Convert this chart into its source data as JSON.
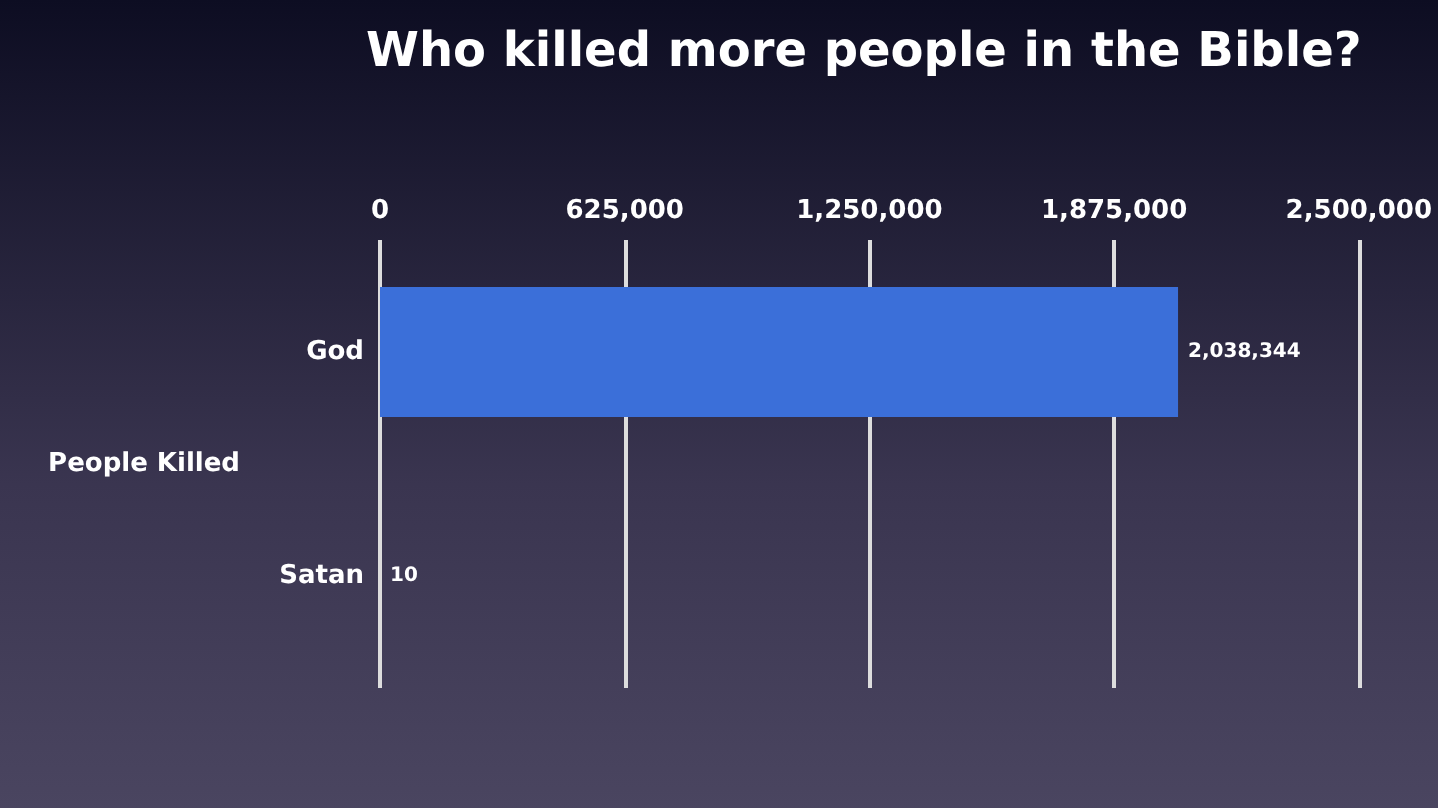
{
  "chart_data": {
    "type": "bar",
    "orientation": "horizontal",
    "title": "Who killed more people in the Bible?",
    "ylabel": "People Killed",
    "categories": [
      "God",
      "Satan"
    ],
    "values": [
      2038344,
      10
    ],
    "colors": [
      "#3b6fd9",
      "#d0643a"
    ],
    "value_labels": [
      "2,038,344",
      "10"
    ],
    "xlim": [
      0,
      2500000
    ],
    "xticks": [
      0,
      {
        "value": 625000,
        "label": "625,000"
      },
      {
        "value": 1250000,
        "label": "1,250,000"
      },
      {
        "value": 1875000,
        "label": "1,875,000"
      },
      {
        "value": 2500000,
        "label": "2,500,000"
      }
    ],
    "grid": "x"
  }
}
